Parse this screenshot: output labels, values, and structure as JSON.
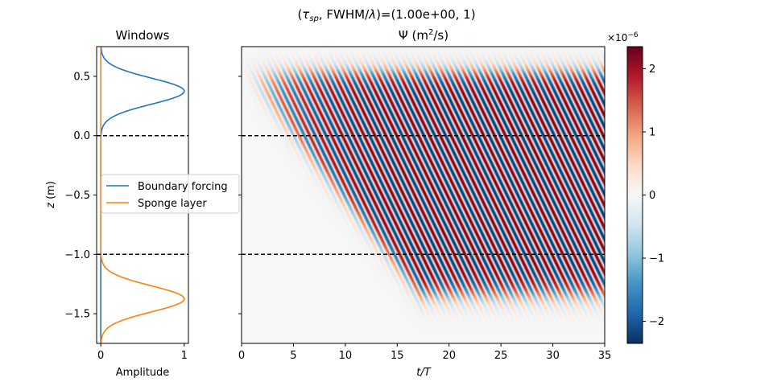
{
  "suptitle": {
    "prefix": "(",
    "tau": "τ",
    "tau_sub": "sp",
    "mid": ", FWHM/",
    "lambda": "λ",
    "suffix": ")=(1.00e+00, 1)"
  },
  "chart_data": [
    {
      "type": "line",
      "title": "Windows",
      "xlabel": "Amplitude",
      "ylabel": {
        "var": "z",
        "unit": " (m)"
      },
      "xlim": [
        -0.05,
        1.05
      ],
      "ylim": [
        -1.75,
        0.75
      ],
      "xticks": [
        0,
        1
      ],
      "yticks": [
        0.5,
        0.0,
        -0.5,
        -1.0,
        -1.5
      ],
      "ytick_labels": [
        "0.5",
        "0.0",
        "−0.5",
        "−1.0",
        "−1.5"
      ],
      "hlines": [
        0.0,
        -1.0
      ],
      "legend": {
        "position": "right-middle"
      },
      "series": [
        {
          "name": "Boundary forcing",
          "color": "#1f77b4",
          "kind": "gaussian",
          "center": 0.375,
          "sigma": 0.11,
          "amplitude": 1
        },
        {
          "name": "Sponge layer",
          "color": "#ff7f0e",
          "kind": "gaussian",
          "center": -1.375,
          "sigma": 0.11,
          "amplitude": 1
        }
      ]
    },
    {
      "type": "heatmap",
      "title": {
        "symbol": "Ψ",
        "unit": " (m",
        "exp": "2",
        "tail": "/s)"
      },
      "xlabel": {
        "var": "t/T"
      },
      "xlim": [
        0,
        35
      ],
      "ylim": [
        -1.75,
        0.75
      ],
      "xticks": [
        0,
        5,
        10,
        15,
        20,
        25,
        30,
        35
      ],
      "hlines": [
        0.0,
        -1.0
      ],
      "colormap": "RdBu_r",
      "colorbar": {
        "scale_label": "×10",
        "scale_exp": "−6",
        "range": [
          -2.35,
          2.35
        ],
        "ticks": [
          2,
          1,
          0,
          -1,
          -2
        ],
        "tick_labels": [
          "2",
          "1",
          "0",
          "−1",
          "−2"
        ]
      },
      "field": {
        "description_values": "wave beam emanating from boundary forcing, descending with time",
        "beam_top": 0.55,
        "beam_bottom_final": -1.35,
        "amplitude_max": 2.35
      }
    }
  ]
}
